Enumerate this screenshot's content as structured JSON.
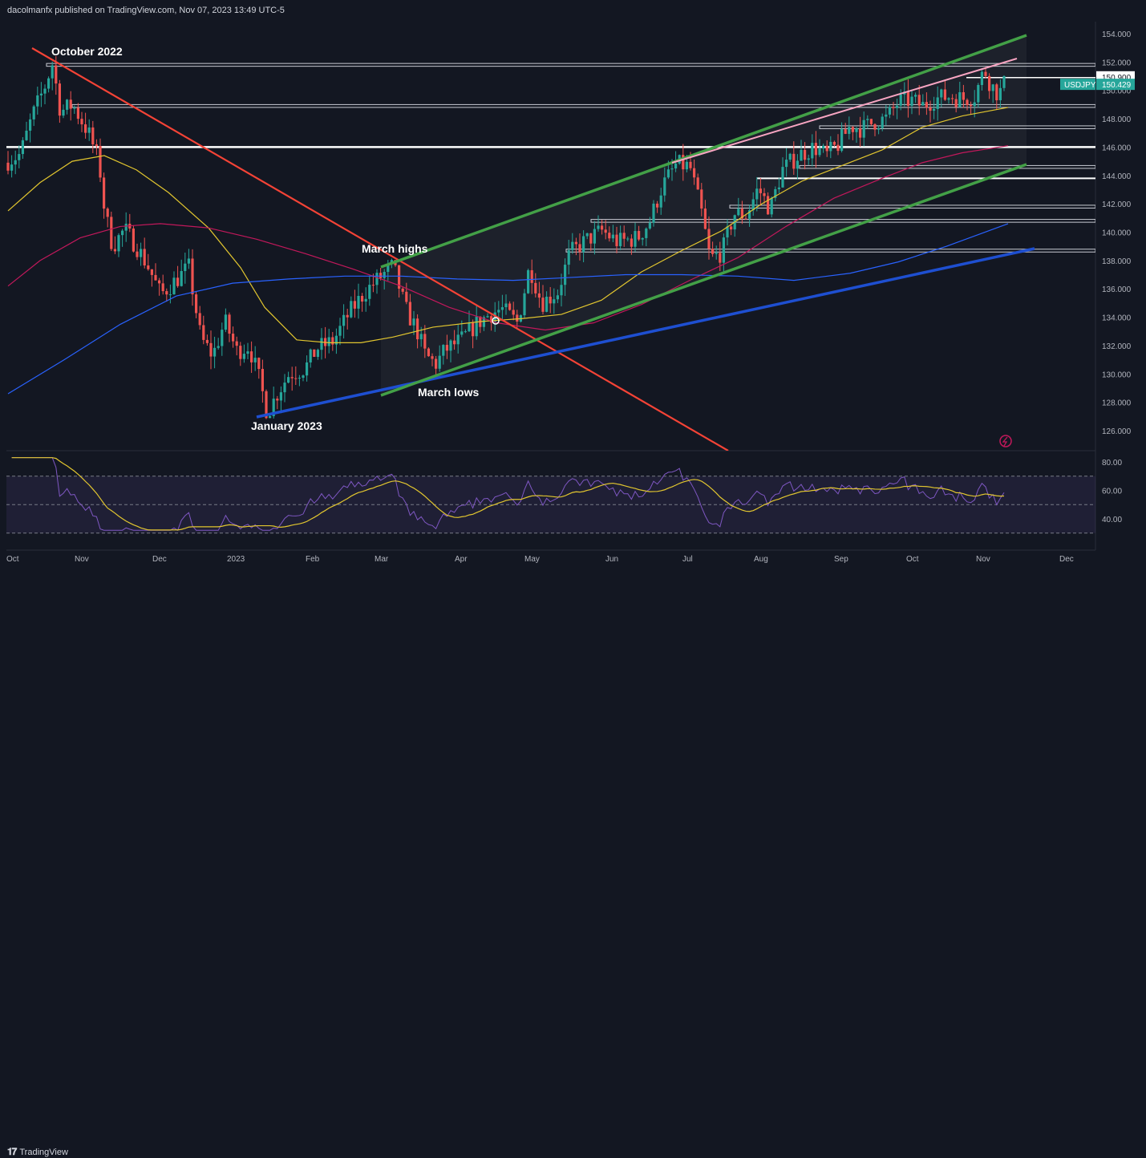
{
  "header": {
    "published": "dacolmanfx published on TradingView.com, Nov 07, 2023 13:49 UTC-5"
  },
  "footer": {
    "brand": "TradingView"
  },
  "colors": {
    "bg": "#131722",
    "up": "#26a69a",
    "down": "#ef5350",
    "sma_short": "#e2c62f",
    "sma_mid": "#c2185b",
    "sma_long": "#2962ff",
    "rsi": "#7e57c2",
    "channel": "#43a047",
    "resistance": "#f44336",
    "support": "#1e4fd1",
    "upper_trend": "#f8a5c2"
  },
  "chart_data": [
    {
      "type": "candlestick",
      "symbol": "USDJPY",
      "yticks": [
        "154.000",
        "152.000",
        "150.000",
        "148.000",
        "146.000",
        "144.000",
        "142.000",
        "140.000",
        "138.000",
        "136.000",
        "134.000",
        "132.000",
        "130.000",
        "128.000",
        "126.000"
      ],
      "ylim": [
        125,
        155
      ],
      "xticks": [
        "Oct",
        "Nov",
        "Dec",
        "2023",
        "Feb",
        "Mar",
        "Apr",
        "May",
        "Jun",
        "Jul",
        "Aug",
        "Sep",
        "Oct",
        "Nov",
        "Dec"
      ],
      "price_tags": [
        {
          "label": "150.900",
          "value": 150.9,
          "style": "line"
        },
        {
          "label": "USDJPY",
          "value": 150.429,
          "style": "symbol"
        },
        {
          "label": "150.429",
          "value": 150.429,
          "style": "last"
        }
      ],
      "annotations": [
        "October 2022",
        "March highs",
        "March lows",
        "January 2023"
      ],
      "key_points": [
        {
          "date": "Oct 2022",
          "value": 151.9
        },
        {
          "date": "Jan 2023",
          "value": 127.2
        },
        {
          "date": "Mar 2023",
          "value": 137.9
        },
        {
          "date": "Mar 2023",
          "value": 129.8
        },
        {
          "date": "Nov 2023",
          "value": 150.429
        }
      ]
    },
    {
      "type": "line",
      "name": "RSI",
      "yticks": [
        "80.00",
        "60.00",
        "40.00"
      ],
      "ylim": [
        30,
        85
      ],
      "bands": [
        70,
        50,
        30
      ]
    }
  ]
}
